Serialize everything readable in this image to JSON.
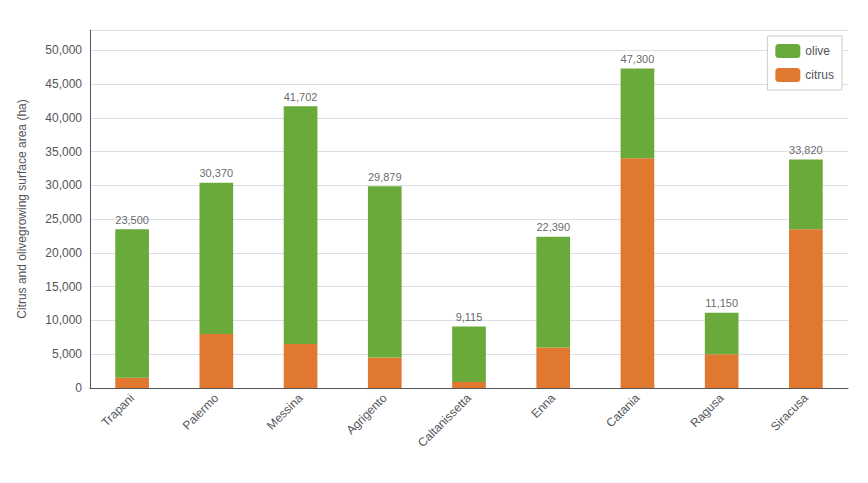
{
  "chart_data": {
    "type": "bar",
    "stacked": true,
    "categories": [
      "Trapani",
      "Palermo",
      "Messina",
      "Agrigento",
      "Caltanissetta",
      "Enna",
      "Catania",
      "Ragusa",
      "Siracusa"
    ],
    "series": [
      {
        "name": "citrus",
        "color": "#e07830",
        "values": [
          1500,
          8000,
          6500,
          4500,
          900,
          6000,
          34000,
          5000,
          23500
        ]
      },
      {
        "name": "olive",
        "color": "#6aaa3a",
        "values": [
          22000,
          22370,
          35202,
          25379,
          8215,
          16390,
          13300,
          6150,
          10320
        ]
      }
    ],
    "annotations": [
      {
        "x": "Trapani",
        "y": 23500,
        "text": "23,500"
      },
      {
        "x": "Palermo",
        "y": 30370,
        "text": "30,370"
      },
      {
        "x": "Messina",
        "y": 41702,
        "text": "41,702"
      },
      {
        "x": "Agrigento",
        "y": 29879,
        "text": "29,879"
      },
      {
        "x": "Caltanissetta",
        "y": 9115,
        "text": "9,115"
      },
      {
        "x": "Enna",
        "y": 22390,
        "text": "22,390"
      },
      {
        "x": "Catania",
        "y": 47300,
        "text": "47,300"
      },
      {
        "x": "Ragusa",
        "y": 11150,
        "text": "11,150"
      },
      {
        "x": "Siracusa",
        "y": 33820,
        "text": "33,820"
      }
    ],
    "ylabel": "Citrus and olivegrowing surface area (ha)",
    "ylim": [
      0,
      53000
    ],
    "yticks": [
      0,
      {
        "value": 5000,
        "label": "5,000"
      },
      {
        "value": 10000,
        "label": "10,000"
      },
      {
        "value": 15000,
        "label": "15,000"
      },
      {
        "value": 20000,
        "label": "20,000"
      },
      {
        "value": 25000,
        "label": "25,000"
      },
      {
        "value": 30000,
        "label": "30,000"
      },
      {
        "value": 35000,
        "label": "35,000"
      },
      {
        "value": 40000,
        "label": "40,000"
      },
      {
        "value": 45000,
        "label": "45,000"
      },
      {
        "value": 50000,
        "label": "50,000"
      }
    ],
    "grid": true,
    "legend": "upper right"
  }
}
